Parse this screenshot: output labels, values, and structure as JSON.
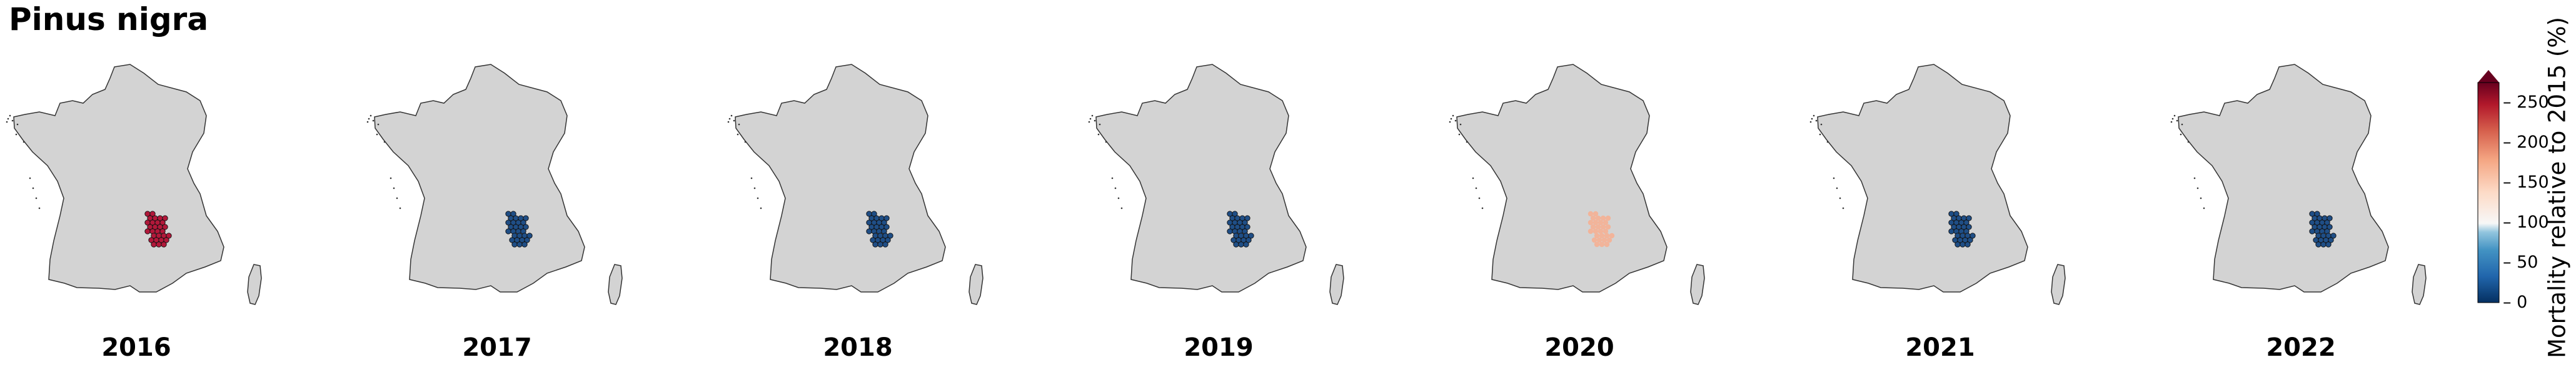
{
  "title": "Pinus nigra",
  "colorbar": {
    "label": "Mortality relative to 2015 (%)",
    "ticks": [
      "250",
      "200",
      "150",
      "100",
      "50",
      "0"
    ],
    "colormap": "RdBu_r",
    "min": 0,
    "max": 275,
    "center": 100,
    "extend": "max"
  },
  "colors": {
    "land": "#d3d3d3",
    "border": "#333333",
    "dark_blue": "#1f4e86",
    "dark_red": "#b2183a",
    "salmon": "#f2b49a"
  },
  "panels": [
    {
      "year": "2016",
      "mortality_level": "high",
      "color": "#b2183a"
    },
    {
      "year": "2017",
      "mortality_level": "low",
      "color": "#1f4e86"
    },
    {
      "year": "2018",
      "mortality_level": "low",
      "color": "#1f4e86"
    },
    {
      "year": "2019",
      "mortality_level": "low",
      "color": "#1f4e86"
    },
    {
      "year": "2020",
      "mortality_level": "moderate-high",
      "color": "#f2b49a"
    },
    {
      "year": "2021",
      "mortality_level": "low",
      "color": "#1f4e86"
    },
    {
      "year": "2022",
      "mortality_level": "low",
      "color": "#1f4e86"
    }
  ]
}
